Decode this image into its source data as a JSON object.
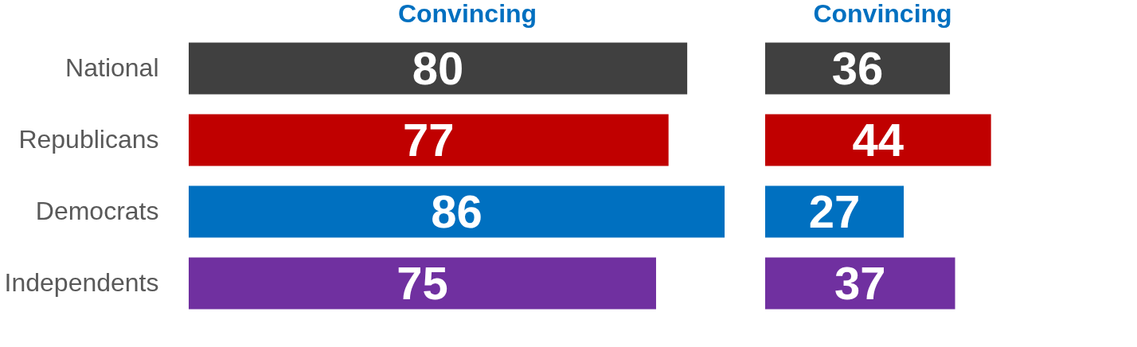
{
  "chart_data": [
    {
      "type": "bar",
      "orientation": "horizontal",
      "title": "Convincing",
      "categories": [
        "National",
        "Republicans",
        "Democrats",
        "Independents"
      ],
      "values": [
        80,
        77,
        86,
        75
      ],
      "colors": [
        "#404040",
        "#c00000",
        "#0070c0",
        "#7030a0"
      ],
      "data_labels": true,
      "tick_labels": "y",
      "grid": false,
      "legend": false
    },
    {
      "type": "bar",
      "orientation": "horizontal",
      "title": "Convincing",
      "categories": [
        null,
        null,
        null,
        null
      ],
      "values": [
        36,
        44,
        27,
        37
      ],
      "colors": [
        "#404040",
        "#c00000",
        "#0070c0",
        "#7030a0"
      ],
      "data_labels": true,
      "tick_labels": false,
      "grid": false,
      "legend": false
    }
  ]
}
